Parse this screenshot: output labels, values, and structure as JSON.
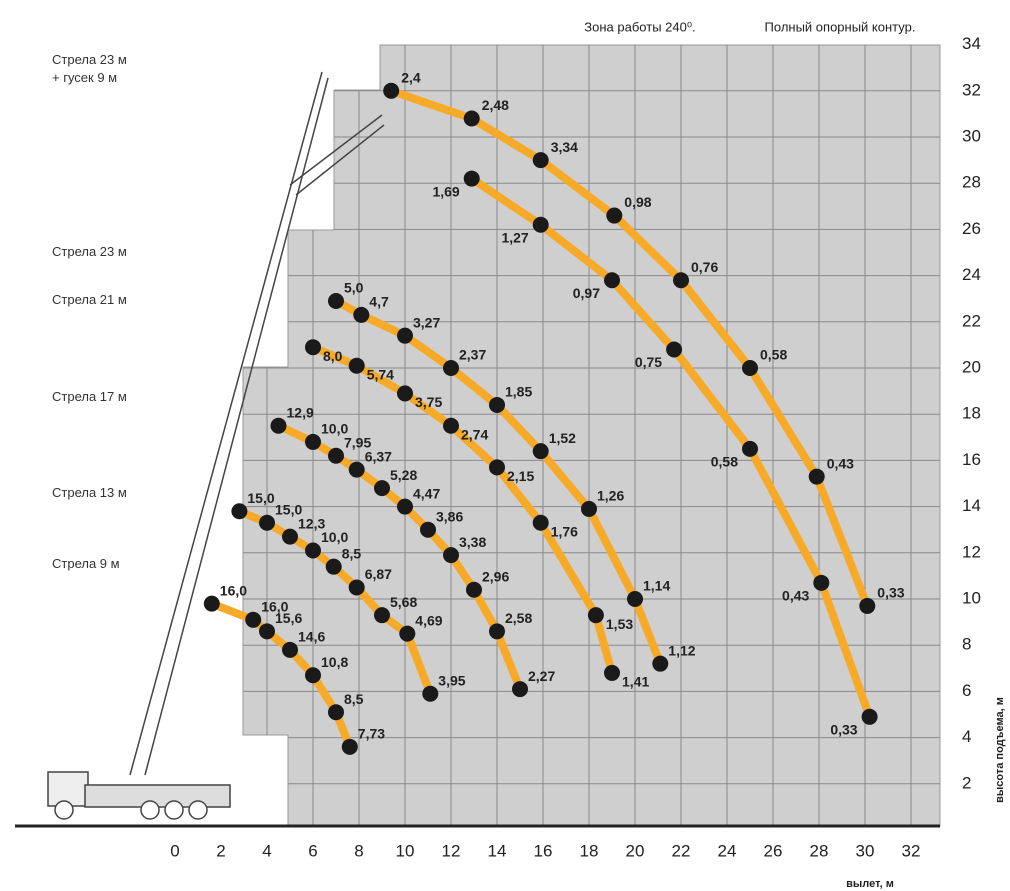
{
  "chart_data": {
    "type": "line",
    "header": [
      "Зона работы 240⁰.",
      "Полный опорный контур."
    ],
    "xlabel": "вылет, м",
    "ylabel": "высота подъема, м",
    "xlim": [
      -7,
      33.5
    ],
    "ylim": [
      0,
      34
    ],
    "xticks": [
      0,
      2,
      4,
      6,
      8,
      10,
      12,
      14,
      16,
      18,
      20,
      22,
      24,
      26,
      28,
      30,
      32
    ],
    "yticks": [
      2,
      4,
      6,
      8,
      10,
      12,
      14,
      16,
      18,
      20,
      22,
      24,
      26,
      28,
      30,
      32,
      34
    ],
    "grid": true,
    "line_color": "#f7a928",
    "point_color": "#1a1a1a",
    "series": [
      {
        "name": "Стрела 23 м + гусек 9 м",
        "x": [
          9.4,
          12.9,
          15.9,
          19.1,
          22.0,
          25.0,
          27.9,
          30.1
        ],
        "values": [
          32.0,
          30.8,
          29.0,
          26.6,
          23.8,
          20.0,
          15.3,
          9.7
        ],
        "labels": [
          "2,4",
          "2,48",
          "3,34",
          "0,98",
          "0,76",
          "0,58",
          "0,43",
          "0,33"
        ]
      },
      {
        "x": [
          12.9,
          15.9,
          19.0,
          21.7,
          25.0,
          28.1,
          30.2
        ],
        "values": [
          28.2,
          26.2,
          23.8,
          20.8,
          16.5,
          10.7,
          4.9
        ],
        "labels": [
          "1,69",
          "1,27",
          "0,97",
          "0,75",
          "0,58",
          "0,43",
          "0,33"
        ]
      },
      {
        "name": "Стрела 23 м",
        "x": [
          7.0,
          8.1,
          10.0,
          12.0,
          14.0,
          15.9,
          18.0,
          20.0,
          21.1
        ],
        "values": [
          22.9,
          22.3,
          21.4,
          20.0,
          18.4,
          16.4,
          13.9,
          10.0,
          7.2
        ],
        "labels": [
          "5,0",
          "4,7",
          "3,27",
          "2,37",
          "1,85",
          "1,52",
          "1,26",
          "1,14",
          "1,12"
        ]
      },
      {
        "name": "Стрела 21 м",
        "x": [
          6.0,
          7.9,
          10.0,
          12.0,
          14.0,
          15.9,
          18.3,
          19.0
        ],
        "values": [
          20.9,
          20.1,
          18.9,
          17.5,
          15.7,
          13.3,
          9.3,
          6.8
        ],
        "labels": [
          "8,0",
          "5,74",
          "3,75",
          "2,74",
          "2,15",
          "1,76",
          "1,53",
          "1,41"
        ]
      },
      {
        "name": "Стрела 17 м",
        "x": [
          4.5,
          6.0,
          7.0,
          7.9,
          9.0,
          10.0,
          11.0,
          12.0,
          13.0,
          14.0,
          15.0
        ],
        "values": [
          17.5,
          16.8,
          16.2,
          15.6,
          14.8,
          14.0,
          13.0,
          11.9,
          10.4,
          8.6,
          6.1
        ],
        "labels": [
          "12,9",
          "10,0",
          "7,95",
          "6,37",
          "5,28",
          "4,47",
          "3,86",
          "3,38",
          "2,96",
          "2,58",
          "2,27"
        ]
      },
      {
        "name": "Стрела 13 м",
        "x": [
          2.8,
          4.0,
          5.0,
          6.0,
          6.9,
          7.9,
          9.0,
          10.1,
          11.1
        ],
        "values": [
          13.8,
          13.3,
          12.7,
          12.1,
          11.4,
          10.5,
          9.3,
          8.5,
          5.9
        ],
        "labels": [
          "15,0",
          "15,0",
          "12,3",
          "10,0",
          "8,5",
          "6,87",
          "5,68",
          "4,69",
          "3,95"
        ]
      },
      {
        "name": "Стрела 9 м",
        "x": [
          1.6,
          3.4,
          4.0,
          5.0,
          6.0,
          7.0,
          7.6
        ],
        "values": [
          9.8,
          9.1,
          8.6,
          7.8,
          6.7,
          5.1,
          3.6
        ],
        "labels": [
          "16,0",
          "16,0",
          "15,6",
          "14,6",
          "10,8",
          "8,5",
          "7,73"
        ]
      }
    ]
  }
}
